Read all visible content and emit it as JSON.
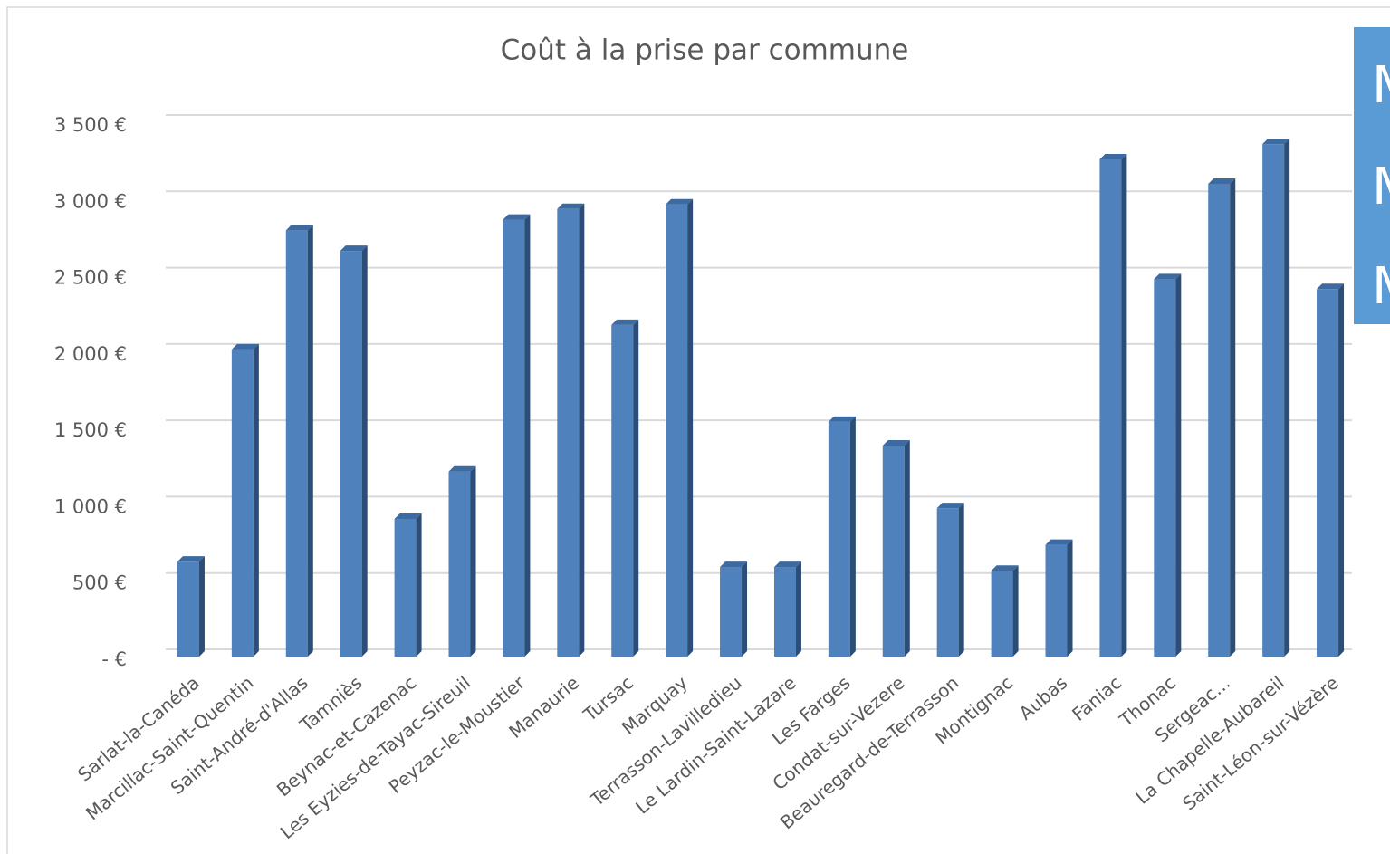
{
  "chart_data": {
    "type": "bar3d",
    "title": "Coût à la prise par commune",
    "categories": [
      "Sarlat-la-Canéda",
      "Marcillac-Saint-Quentin",
      "Saint-André-d'Allas",
      "Tamniès",
      "Beynac-et-Cazenac",
      "Les Eyzies-de-Tayac-Sireuil",
      "Peyzac-le-Moustier",
      "Manaurie",
      "Tursac",
      "Marquay",
      "Terrasson-Lavilledieu",
      "Le Lardin-Saint-Lazare",
      "Les Farges",
      "Condat-sur-Vezere",
      "Beauregard-de-Terrasson",
      "Montignac",
      "Aubas",
      "Faniac",
      "Thonac",
      "Sergeac...",
      "La Chapelle-Aubareil",
      "Saint-Léon-sur-Vézère"
    ],
    "values": [
      610,
      2000,
      2780,
      2645,
      890,
      1200,
      2850,
      2920,
      2160,
      2950,
      575,
      575,
      1525,
      1370,
      960,
      550,
      720,
      3245,
      2460,
      3085,
      3345,
      2395
    ],
    "color": "#4f81bd",
    "ylim": [
      0,
      3500
    ],
    "yticks": [
      {
        "value": 0,
        "label": "-  €"
      },
      {
        "value": 500,
        "label": "500 €"
      },
      {
        "value": 1000,
        "label": "1 000 €"
      },
      {
        "value": 1500,
        "label": "1 500 €"
      },
      {
        "value": 2000,
        "label": "2 000 €"
      },
      {
        "value": 2500,
        "label": "2 500 €"
      },
      {
        "value": 3000,
        "label": "3 000 €"
      },
      {
        "value": 3500,
        "label": "3 500 €"
      }
    ],
    "grid": true
  },
  "side_panel": {
    "lines": [
      "M",
      "M",
      "M"
    ]
  }
}
